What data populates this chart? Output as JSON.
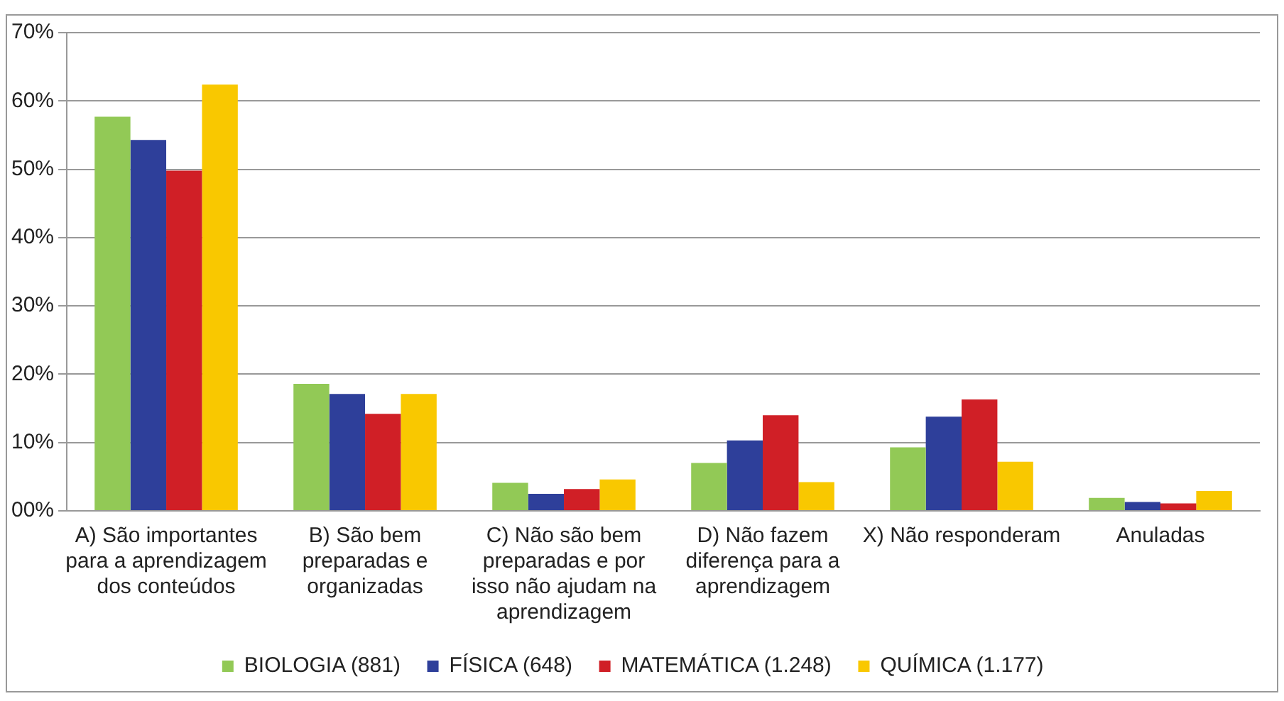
{
  "chart_data": {
    "type": "bar",
    "categories": [
      "A) São importantes para a aprendizagem dos conteúdos",
      "B) São bem preparadas e organizadas",
      "C) Não são bem preparadas e por isso não ajudam na aprendizagem",
      "D) Não fazem diferença para a aprendizagem",
      "X) Não responderam",
      "Anuladas"
    ],
    "series": [
      {
        "name": "BIOLOGIA (881)",
        "color": "#92c956",
        "values": [
          57.7,
          18.6,
          4.1,
          7.0,
          9.3,
          1.9
        ]
      },
      {
        "name": "FÍSICA (648)",
        "color": "#2e3f9a",
        "values": [
          54.3,
          17.1,
          2.5,
          10.3,
          13.8,
          1.3
        ]
      },
      {
        "name": "MATEMÁTICA (1.248)",
        "color": "#d01f26",
        "values": [
          49.8,
          14.2,
          3.2,
          14.0,
          16.3,
          1.1
        ]
      },
      {
        "name": "QUÍMICA (1.177)",
        "color": "#f9c800",
        "values": [
          62.4,
          17.1,
          4.6,
          4.2,
          7.2,
          2.9
        ]
      }
    ],
    "ylim": [
      0,
      70
    ],
    "yticks": [
      {
        "value": 0,
        "label": "00%"
      },
      {
        "value": 10,
        "label": "10%"
      },
      {
        "value": 20,
        "label": "20%"
      },
      {
        "value": 30,
        "label": "30%"
      },
      {
        "value": 40,
        "label": "40%"
      },
      {
        "value": 50,
        "label": "50%"
      },
      {
        "value": 60,
        "label": "60%"
      },
      {
        "value": 70,
        "label": "70%"
      }
    ],
    "grid": "y",
    "legend": "bottom"
  }
}
